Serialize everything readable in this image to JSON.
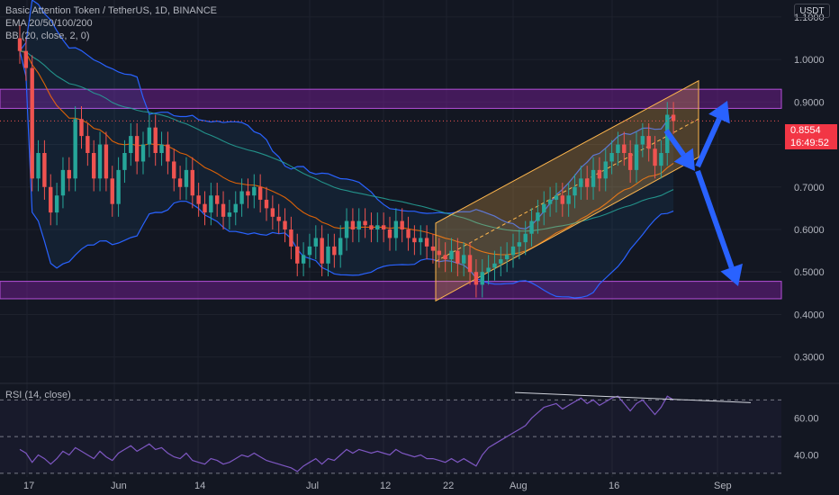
{
  "header": {
    "title": "Basic Attention Token / TetherUS, 1D, BINANCE",
    "ema_label": "EMA 20/50/100/200",
    "bb_label": "BB (20, close, 2, 0)",
    "currency": "USDT"
  },
  "rsi": {
    "label": "RSI (14, close)",
    "ticks": [
      "60.00",
      "40.00"
    ]
  },
  "price_tag": {
    "price": "0.8554",
    "countdown": "16:49:52"
  },
  "colors": {
    "background": "#131722",
    "up": "#26a69a",
    "down": "#ef5350",
    "zone": "#7e1fa0",
    "channel": "#ffb74d",
    "arrow": "#2962ff",
    "bb": "#2962ff",
    "ema20": "#26a69a",
    "ema50": "#ff6d00",
    "rsi": "#7e57c2"
  },
  "chart_data": {
    "type": "candlestick",
    "y_ticks": [
      "1.1000",
      "1.0000",
      "0.9000",
      "0.8000",
      "0.7000",
      "0.6000",
      "0.5000",
      "0.4000",
      "0.3000"
    ],
    "x_ticks": [
      "17",
      "Jun",
      "14",
      "Jul",
      "12",
      "22",
      "Aug",
      "16",
      "Sep"
    ],
    "ylim": [
      0.24,
      1.14
    ],
    "zones": [
      [
        0.885,
        0.93
      ],
      [
        0.437,
        0.478
      ]
    ],
    "candles_close": [
      1.02,
      0.98,
      0.72,
      0.78,
      0.7,
      0.64,
      0.68,
      0.74,
      0.72,
      0.86,
      0.82,
      0.78,
      0.72,
      0.8,
      0.72,
      0.66,
      0.74,
      0.78,
      0.82,
      0.76,
      0.8,
      0.84,
      0.78,
      0.8,
      0.76,
      0.72,
      0.7,
      0.74,
      0.68,
      0.66,
      0.64,
      0.68,
      0.66,
      0.63,
      0.64,
      0.66,
      0.69,
      0.68,
      0.7,
      0.67,
      0.65,
      0.63,
      0.62,
      0.6,
      0.56,
      0.52,
      0.54,
      0.56,
      0.58,
      0.52,
      0.56,
      0.54,
      0.58,
      0.62,
      0.6,
      0.62,
      0.61,
      0.6,
      0.61,
      0.6,
      0.58,
      0.62,
      0.6,
      0.58,
      0.57,
      0.58,
      0.56,
      0.55,
      0.54,
      0.53,
      0.55,
      0.52,
      0.54,
      0.5,
      0.47,
      0.5,
      0.51,
      0.52,
      0.53,
      0.54,
      0.56,
      0.57,
      0.59,
      0.62,
      0.64,
      0.66,
      0.67,
      0.68,
      0.66,
      0.68,
      0.7,
      0.72,
      0.7,
      0.74,
      0.72,
      0.76,
      0.78,
      0.8,
      0.78,
      0.74,
      0.8,
      0.82,
      0.79,
      0.75,
      0.78,
      0.87,
      0.855
    ],
    "rsi_values": [
      43,
      41,
      36,
      40,
      38,
      35,
      38,
      42,
      40,
      44,
      42,
      40,
      38,
      42,
      39,
      37,
      41,
      43,
      45,
      42,
      44,
      46,
      43,
      44,
      41,
      39,
      38,
      41,
      37,
      36,
      35,
      38,
      37,
      35,
      36,
      38,
      40,
      39,
      41,
      39,
      37,
      36,
      35,
      34,
      33,
      31,
      34,
      36,
      38,
      35,
      38,
      37,
      40,
      43,
      41,
      43,
      42,
      41,
      42,
      41,
      40,
      43,
      41,
      40,
      39,
      40,
      38,
      38,
      37,
      36,
      38,
      36,
      38,
      36,
      34,
      40,
      44,
      46,
      48,
      50,
      52,
      54,
      56,
      60,
      63,
      66,
      67,
      68,
      65,
      67,
      69,
      71,
      68,
      70,
      67,
      69,
      71,
      72,
      68,
      64,
      68,
      70,
      66,
      62,
      66,
      72,
      70
    ],
    "rsi_ylim": [
      28,
      78
    ]
  }
}
